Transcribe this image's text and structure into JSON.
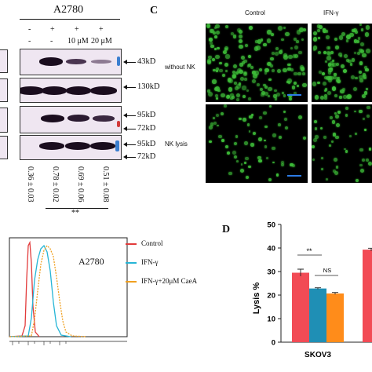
{
  "panelB_blot": {
    "cell_line": "A2780",
    "treatment_row1": [
      "-",
      "+",
      "+",
      "+"
    ],
    "treatment_row2": [
      "-",
      "-",
      "10 μM",
      "20 μM"
    ],
    "markers": [
      "43kD",
      "130kD",
      "95kD",
      "72kD",
      "95kD",
      "72kD"
    ],
    "ratios": [
      "0.36 ± 0.03",
      "0.78 ± 0.02",
      "0.69 ± 0.06",
      "0.51 ± 0.08"
    ],
    "significance": "**"
  },
  "panelC": {
    "letter": "C",
    "col_labels": [
      "Control",
      "IFN-γ"
    ],
    "row_labels": [
      "without NK",
      "NK lysis"
    ]
  },
  "flow": {
    "label": "A2780",
    "legend": [
      "Control",
      "IFN-γ",
      "IFN-γ+20μM CaeA"
    ],
    "colors": [
      "#e23b3b",
      "#26b5d6",
      "#f0a020"
    ]
  },
  "panelD": {
    "letter": "D",
    "chart_data": {
      "type": "bar",
      "categories": [
        "SKOV3"
      ],
      "series": [
        {
          "values": [
            29.5
          ],
          "error": [
            1.5
          ],
          "color": "#f24b55"
        },
        {
          "values": [
            22.8
          ],
          "error": [
            0.3
          ],
          "color": "#1f8fb5"
        },
        {
          "values": [
            20.7
          ],
          "error": [
            0.4
          ],
          "color": "#ff8c1a"
        }
      ],
      "extra_bar": {
        "value": 39.3,
        "error": 0.6,
        "color": "#f24b55"
      },
      "ylabel": "Lysis %",
      "ylim": [
        0,
        50
      ],
      "yticks": [
        "0",
        "10",
        "20",
        "30",
        "40",
        "50"
      ],
      "annotations": [
        "**",
        "NS"
      ]
    }
  }
}
